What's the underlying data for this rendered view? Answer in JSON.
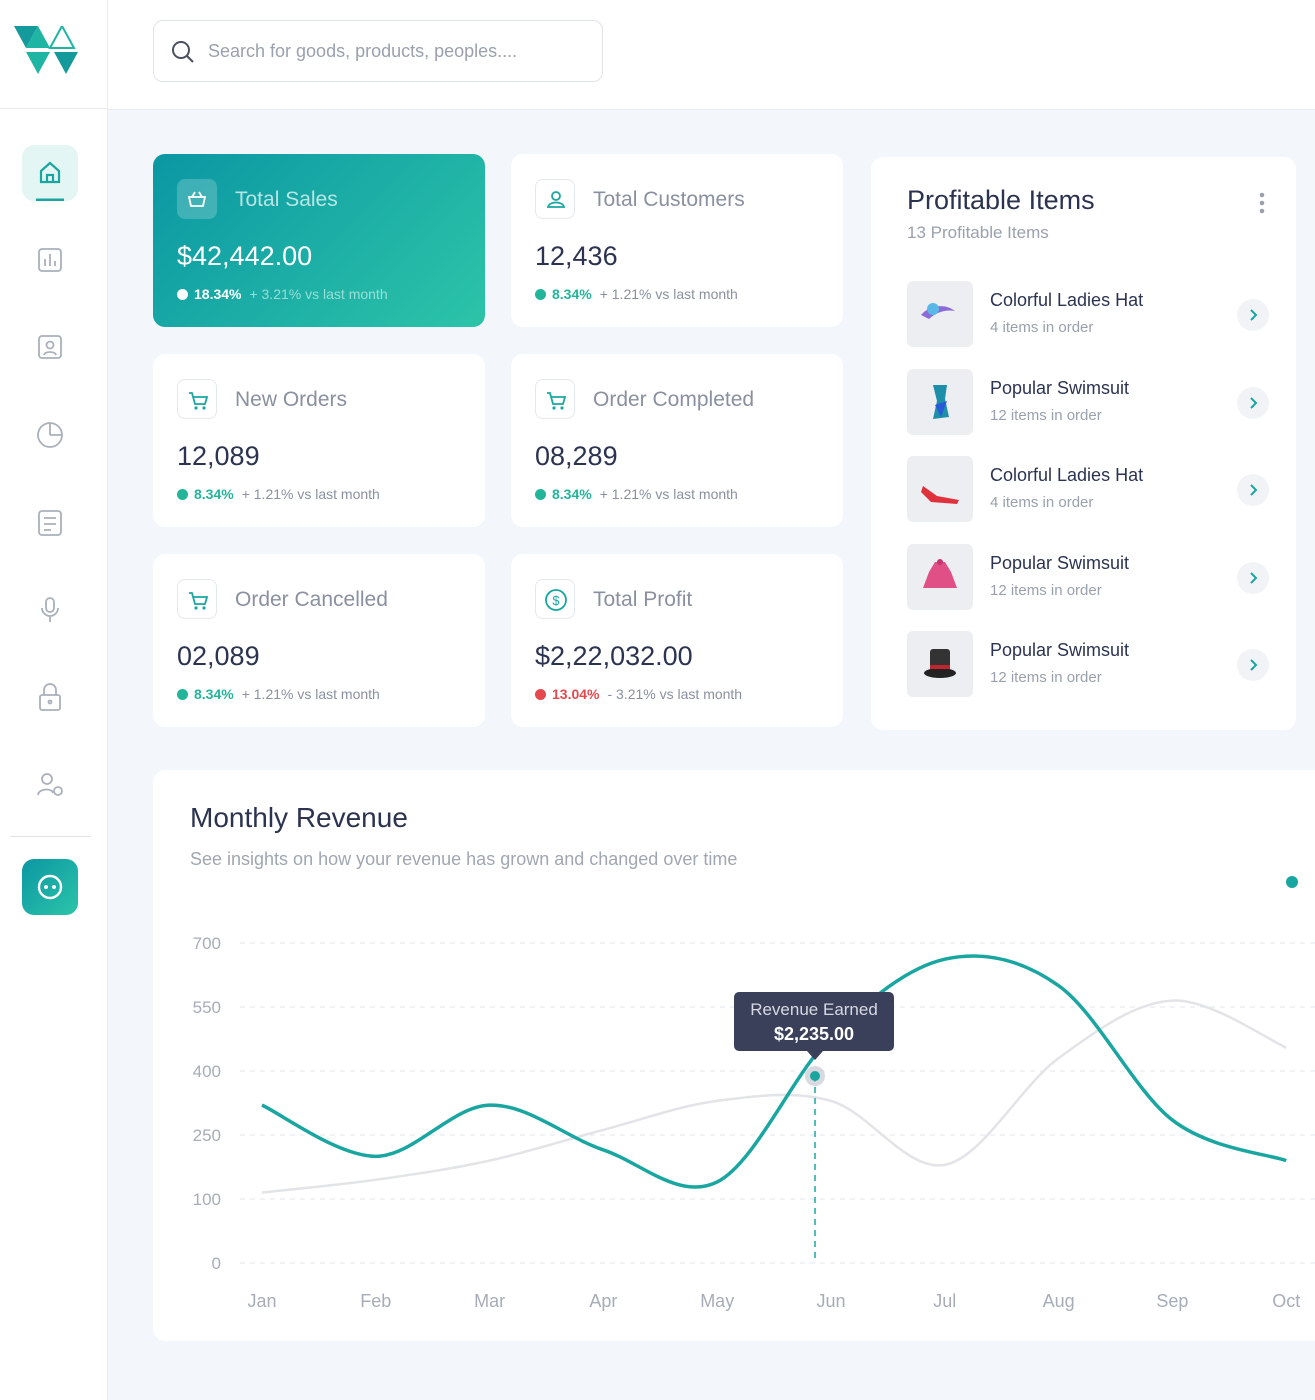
{
  "search": {
    "placeholder": "Search for goods, products, peoples...."
  },
  "cards": [
    {
      "title": "Total Sales",
      "value": "$42,442.00",
      "change": "18.34%",
      "note": "+ 3.21% vs last month",
      "change_color": "#ffffff",
      "highlight": true
    },
    {
      "title": "Total Customers",
      "value": "12,436",
      "change": "8.34%",
      "note": "+ 1.21% vs last month",
      "change_color": "#22b59a",
      "highlight": false
    },
    {
      "title": "New Orders",
      "value": "12,089",
      "change": "8.34%",
      "note": "+ 1.21% vs last month",
      "change_color": "#22b59a",
      "highlight": false
    },
    {
      "title": "Order Completed",
      "value": "08,289",
      "change": "8.34%",
      "note": "+ 1.21% vs last month",
      "change_color": "#22b59a",
      "highlight": false
    },
    {
      "title": "Order Cancelled",
      "value": "02,089",
      "change": "8.34%",
      "note": "+ 1.21% vs last month",
      "change_color": "#22b59a",
      "highlight": false
    },
    {
      "title": "Total Profit",
      "value": "$2,22,032.00",
      "change": "13.04%",
      "note": "- 3.21% vs last month",
      "change_color": "#e5484d",
      "highlight": false
    }
  ],
  "profitable": {
    "title": "Profitable Items",
    "subtitle": "13 Profitable Items",
    "items": [
      {
        "name": "Colorful Ladies Hat",
        "note": "4 items in order"
      },
      {
        "name": "Popular Swimsuit",
        "note": "12 items in order"
      },
      {
        "name": "Colorful Ladies Hat",
        "note": "4 items in order"
      },
      {
        "name": "Popular Swimsuit",
        "note": "12 items in order"
      },
      {
        "name": "Popular Swimsuit",
        "note": "12 items in order"
      }
    ]
  },
  "chart_data": {
    "type": "line",
    "title": "Monthly Revenue",
    "subtitle": "See insights on how your revenue has grown and changed over time",
    "categories": [
      "Jan",
      "Feb",
      "Mar",
      "Apr",
      "May",
      "Jun",
      "Jul",
      "Aug",
      "Sep",
      "Oct"
    ],
    "series": [
      {
        "color": "#1aa6a0",
        "values": [
          320,
          200,
          320,
          215,
          140,
          480,
          662,
          600,
          285,
          190
        ]
      },
      {
        "color": "#e2e4e8",
        "values": [
          115,
          145,
          190,
          262,
          330,
          330,
          180,
          430,
          565,
          455
        ]
      }
    ],
    "ylim": [
      0,
      700
    ],
    "yticks": [
      0,
      100,
      250,
      400,
      550,
      700
    ],
    "grid": true,
    "annotation": {
      "title": "Revenue Earned",
      "value": "$2,235.00"
    }
  }
}
